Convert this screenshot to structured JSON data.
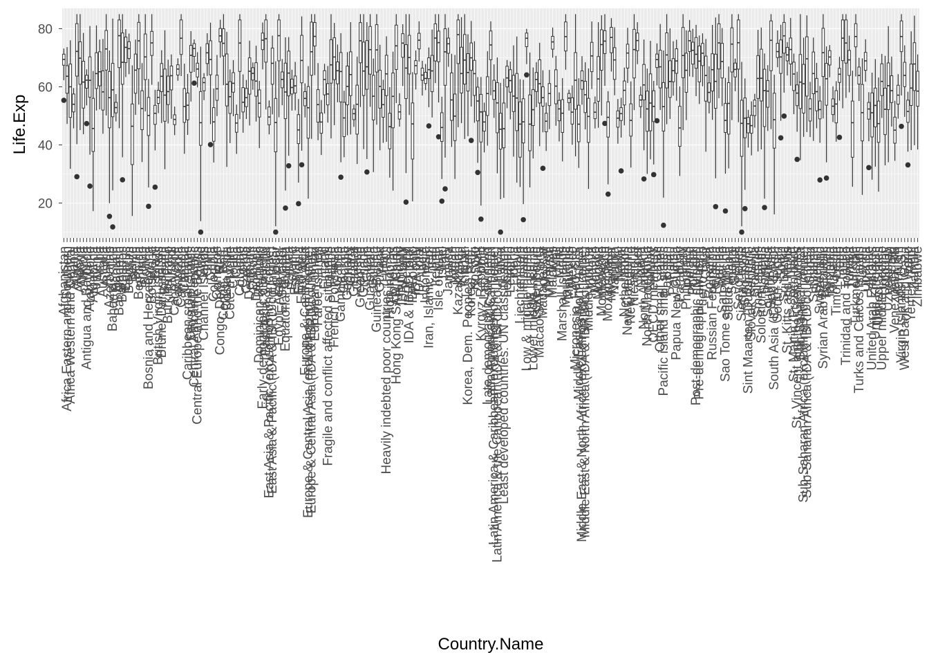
{
  "chart_data": {
    "type": "boxplot",
    "xlabel": "Country.Name",
    "ylabel": "Life.Exp",
    "ylim": [
      8,
      87
    ],
    "y_ticks": [
      20,
      40,
      60,
      80
    ],
    "grid": true,
    "categories": [
      "Afghanistan",
      "Africa Eastern and Southern",
      "Africa Western and Central",
      "Albania",
      "Algeria",
      "Andorra",
      "Angola",
      "Antigua and Barbuda",
      "Arab World",
      "Argentina",
      "Armenia",
      "Aruba",
      "Australia",
      "Austria",
      "Azerbaijan",
      "Bahamas, The",
      "Bahrain",
      "Bangladesh",
      "Barbados",
      "Belarus",
      "Belgium",
      "Belize",
      "Benin",
      "Bermuda",
      "Bhutan",
      "Bolivia",
      "Bosnia and Herzegovina",
      "Botswana",
      "Brazil",
      "British Virgin Islands",
      "Brunei Darussalam",
      "Bulgaria",
      "Burkina Faso",
      "Burundi",
      "Cabo Verde",
      "Cambodia",
      "Cameroon",
      "Canada",
      "Caribbean small states",
      "Cayman Islands",
      "Central African Republic",
      "Central Europe and the Baltics",
      "Chad",
      "Channel Islands",
      "Chile",
      "China",
      "Colombia",
      "Comoros",
      "Congo, Dem. Rep.",
      "Congo, Rep.",
      "Costa Rica",
      "Cote d'Ivoire",
      "Croatia",
      "Cuba",
      "Curacao",
      "Cyprus",
      "Czechia",
      "Denmark",
      "Djibouti",
      "Dominica",
      "Dominican Republic",
      "Early-demographic dividend",
      "East Asia & Pacific",
      "East Asia & Pacific (excluding high income)",
      "East Asia & Pacific (IDA & IBRD countries)",
      "Ecuador",
      "Egypt, Arab Rep.",
      "El Salvador",
      "Equatorial Guinea",
      "Eritrea",
      "Estonia",
      "Eswatini",
      "Ethiopia",
      "Euro area",
      "Europe & Central Asia",
      "Europe & Central Asia (excluding high income)",
      "Europe & Central Asia (IDA & IBRD countries)",
      "European Union",
      "Faroe Islands",
      "Fiji",
      "Finland",
      "Fragile and conflict affected situations",
      "France",
      "French Polynesia",
      "Gabon",
      "Gambia, The",
      "Georgia",
      "Germany",
      "Ghana",
      "Gibraltar",
      "Greece",
      "Greenland",
      "Grenada",
      "Guam",
      "Guatemala",
      "Guinea",
      "Guinea-Bissau",
      "Guyana",
      "Haiti",
      "Heavily indebted poor countries (HIPC)",
      "High income",
      "Honduras",
      "Hong Kong SAR, China",
      "Hungary",
      "IBRD only",
      "Iceland",
      "IDA & IBRD total",
      "IDA blend",
      "IDA only",
      "IDA total",
      "India",
      "Indonesia",
      "Iran, Islamic Rep.",
      "Iraq",
      "Ireland",
      "Isle of Man",
      "Israel",
      "Italy",
      "Jamaica",
      "Japan",
      "Jordan",
      "Kazakhstan",
      "Kenya",
      "Kiribati",
      "Korea, Dem. People's Rep.",
      "Korea, Rep.",
      "Kosovo",
      "Kuwait",
      "Kyrgyz Republic",
      "Lao PDR",
      "Late-demographic dividend",
      "Latin America & Caribbean",
      "Latin America & Caribbean (excluding high income)",
      "Latin America & the Caribbean (IDA & IBRD countries)",
      "Latvia",
      "Least developed countries: UN classification",
      "Lebanon",
      "Lesotho",
      "Liberia",
      "Libya",
      "Liechtenstein",
      "Lithuania",
      "Low & middle income",
      "Low income",
      "Lower middle income",
      "Luxembourg",
      "Macao SAR, China",
      "Madagascar",
      "Malawi",
      "Malaysia",
      "Maldives",
      "Mali",
      "Malta",
      "Marshall Islands",
      "Mauritania",
      "Mauritius",
      "Mexico",
      "Micronesia, Fed. Sts.",
      "Middle East & North Africa",
      "Middle East & North Africa (excluding high income)",
      "Middle East & North Africa (IDA & IBRD countries)",
      "Middle income",
      "Moldova",
      "Monaco",
      "Mongolia",
      "Montenegro",
      "Morocco",
      "Mozambique",
      "Myanmar",
      "Namibia",
      "Nauru",
      "Nepal",
      "Netherlands",
      "New Caledonia",
      "New Zealand",
      "Nicaragua",
      "Niger",
      "Nigeria",
      "North America",
      "North Macedonia",
      "Norway",
      "OECD members",
      "Oman",
      "Other small states",
      "Pacific island small states",
      "Pakistan",
      "Palau",
      "Panama",
      "Papua New Guinea",
      "Paraguay",
      "Peru",
      "Philippines",
      "Poland",
      "Portugal",
      "Post-demographic dividend",
      "Pre-demographic dividend",
      "Puerto Rico",
      "Qatar",
      "Romania",
      "Russian Federation",
      "Rwanda",
      "Samoa",
      "San Marino",
      "Sao Tome and Principe",
      "Saudi Arabia",
      "Senegal",
      "Serbia",
      "Seychelles",
      "Sierra Leone",
      "Singapore",
      "Sint Maarten (Dutch part)",
      "Slovak Republic",
      "Slovenia",
      "Small states",
      "Solomon Islands",
      "Somalia",
      "South Africa",
      "South Asia",
      "South Asia (IDA & IBRD)",
      "South Sudan",
      "Spain",
      "Sri Lanka",
      "St. Kitts and Nevis",
      "St. Lucia",
      "St. Martin (French part)",
      "St. Vincent and the Grenadines",
      "Sub-Saharan Africa",
      "Sub-Saharan Africa (excluding high income)",
      "Sub-Saharan Africa (IDA & IBRD countries)",
      "Sudan",
      "Suriname",
      "Sweden",
      "Switzerland",
      "Syrian Arab Republic",
      "Tajikistan",
      "Tanzania",
      "Thailand",
      "Timor-Leste",
      "Togo",
      "Tonga",
      "Trinidad and Tobago",
      "Tunisia",
      "Turkiye",
      "Turkmenistan",
      "Turks and Caicos Islands",
      "Tuvalu",
      "Uganda",
      "Ukraine",
      "United Arab Emirates",
      "United Kingdom",
      "United States",
      "Upper middle income",
      "Uruguay",
      "Uzbekistan",
      "Vanuatu",
      "Venezuela, RB",
      "Viet Nam",
      "Virgin Islands (U.S.)",
      "West Bank and Gaza",
      "World",
      "Yemen, Rep.",
      "Zambia",
      "Zimbabwe"
    ]
  }
}
